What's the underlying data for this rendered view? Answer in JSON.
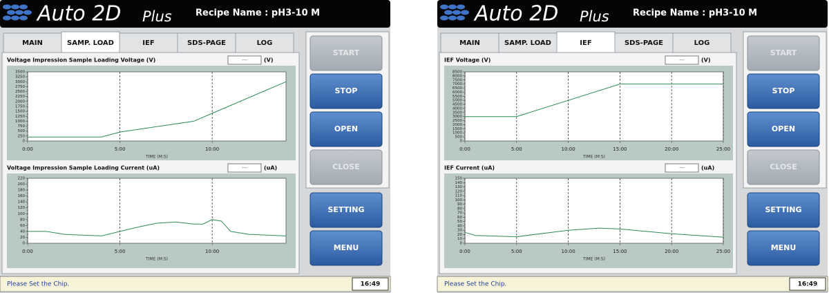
{
  "panels": [
    {
      "header": {
        "logo": "Auto 2D",
        "logo_suffix": "Plus",
        "recipe": "Recipe Name : pH3-10 M"
      },
      "tabs": [
        "MAIN",
        "SAMP. LOAD",
        "IEF",
        "SDS-PAGE",
        "LOG"
      ],
      "active_tab": 1,
      "charts": [
        {
          "title": "Voltage Impression Sample Loading  Voltage (V)",
          "readout": "---",
          "unit": "(V)",
          "xlabel": "TIME (M:S)",
          "xlim": [
            0,
            14
          ],
          "xticks": [
            {
              "value": 0,
              "label": "0:00"
            },
            {
              "value": 5,
              "label": "5:00"
            },
            {
              "value": 10,
              "label": "10:00"
            }
          ],
          "ylim": [
            0,
            3500
          ],
          "yticks": [
            0,
            250,
            500,
            750,
            1000,
            1250,
            1500,
            1750,
            2000,
            2250,
            2500,
            2750,
            3000,
            3250,
            3500
          ],
          "x_grid": true,
          "color": "#2e8b57",
          "x": [
            0,
            4,
            5,
            9,
            10,
            14
          ],
          "values": [
            200,
            200,
            450,
            1000,
            1400,
            3000
          ]
        },
        {
          "title": "Voltage Impression Sample Loading Current (uA)",
          "readout": "---",
          "unit": "(uA)",
          "xlabel": "TIME (M:S)",
          "xlim": [
            0,
            14
          ],
          "xticks": [
            {
              "value": 0,
              "label": "0:00"
            },
            {
              "value": 5,
              "label": "5:00"
            },
            {
              "value": 10,
              "label": "10:00"
            }
          ],
          "ylim": [
            0,
            220
          ],
          "yticks": [
            0,
            20,
            40,
            60,
            80,
            100,
            120,
            140,
            160,
            180,
            200,
            220
          ],
          "x_grid": true,
          "color": "#2e8b57",
          "x": [
            0,
            1,
            2,
            4,
            5,
            6,
            7,
            8,
            9,
            9.5,
            10,
            10.5,
            11,
            12,
            14
          ],
          "values": [
            40,
            40,
            30,
            25,
            40,
            55,
            68,
            72,
            65,
            65,
            80,
            75,
            40,
            30,
            25
          ]
        }
      ],
      "buttons": [
        {
          "label": "START",
          "enabled": false
        },
        {
          "label": "STOP",
          "enabled": true
        },
        {
          "label": "OPEN",
          "enabled": true
        },
        {
          "label": "CLOSE",
          "enabled": false
        },
        {
          "label": "SETTING",
          "enabled": true
        },
        {
          "label": "MENU",
          "enabled": true
        }
      ],
      "status": {
        "message": "Please Set the Chip.",
        "time": "16:49"
      }
    },
    {
      "header": {
        "logo": "Auto 2D",
        "logo_suffix": "Plus",
        "recipe": "Recipe Name : pH3-10 M"
      },
      "tabs": [
        "MAIN",
        "SAMP. LOAD",
        "IEF",
        "SDS-PAGE",
        "LOG"
      ],
      "active_tab": 2,
      "charts": [
        {
          "title": "IEF Voltage (V)",
          "readout": "---",
          "unit": "(V)",
          "xlabel": "TIME (M:S)",
          "xlim": [
            0,
            25
          ],
          "xticks": [
            {
              "value": 0,
              "label": "0:00"
            },
            {
              "value": 5,
              "label": "5:00"
            },
            {
              "value": 10,
              "label": "10:00"
            },
            {
              "value": 15,
              "label": "15:00"
            },
            {
              "value": 20,
              "label": "20:00"
            },
            {
              "value": 25,
              "label": "25:00"
            }
          ],
          "ylim": [
            0,
            8500
          ],
          "yticks": [
            0,
            500,
            1000,
            1500,
            2000,
            2500,
            3000,
            3500,
            4000,
            4500,
            5000,
            5500,
            6000,
            6500,
            7000,
            7500,
            8000,
            8500
          ],
          "x_grid": true,
          "color": "#2e8b57",
          "x": [
            0,
            5,
            15,
            25
          ],
          "values": [
            3000,
            3000,
            7000,
            7000
          ]
        },
        {
          "title": "IEF Current (uA)",
          "readout": "---",
          "unit": "(uA)",
          "xlabel": "TIME (M:S)",
          "xlim": [
            0,
            25
          ],
          "xticks": [
            {
              "value": 0,
              "label": "0:00"
            },
            {
              "value": 5,
              "label": "5:00"
            },
            {
              "value": 10,
              "label": "10:00"
            },
            {
              "value": 15,
              "label": "15:00"
            },
            {
              "value": 20,
              "label": "20:00"
            },
            {
              "value": 25,
              "label": "25:00"
            }
          ],
          "ylim": [
            0,
            150
          ],
          "yticks": [
            0,
            10,
            20,
            30,
            40,
            50,
            60,
            70,
            80,
            90,
            100,
            110,
            120,
            130,
            140,
            150
          ],
          "x_grid": true,
          "color": "#2e8b57",
          "x": [
            0,
            1,
            5,
            10,
            13,
            15,
            20,
            25
          ],
          "values": [
            25,
            18,
            15,
            30,
            35,
            33,
            22,
            14
          ]
        }
      ],
      "buttons": [
        {
          "label": "START",
          "enabled": false
        },
        {
          "label": "STOP",
          "enabled": true
        },
        {
          "label": "OPEN",
          "enabled": true
        },
        {
          "label": "CLOSE",
          "enabled": false
        },
        {
          "label": "SETTING",
          "enabled": true
        },
        {
          "label": "MENU",
          "enabled": true
        }
      ],
      "status": {
        "message": "Please Set the Chip.",
        "time": "16:49"
      }
    }
  ]
}
